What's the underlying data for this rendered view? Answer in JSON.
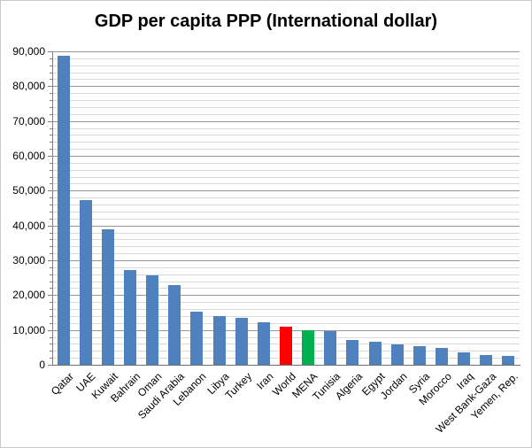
{
  "chart": {
    "title": "GDP per capita PPP (International dollar)"
  },
  "chart_data": {
    "type": "bar",
    "title": "GDP per capita PPP (International dollar)",
    "xlabel": "",
    "ylabel": "",
    "ylim": [
      0,
      90000
    ],
    "ytick_interval": 10000,
    "minor_gridline_interval": 2000,
    "grid": "horizontal major + minor, minor ticks on y-axis",
    "legend": "none",
    "categories": [
      "Qatar",
      "UAE",
      "Kuwait",
      "Bahrain",
      "Oman",
      "Saudi Arabia",
      "Lebanon",
      "Libya",
      "Turkey",
      "Iran",
      "World",
      "MENA",
      "Tunisia",
      "Algeria",
      "Egypt",
      "Jordan",
      "Syria",
      "Morocco",
      "Iraq",
      "West Bank-Gaza",
      "Yemen, Rep."
    ],
    "values": [
      88800,
      47400,
      39000,
      27100,
      25600,
      22900,
      15300,
      13900,
      13600,
      12200,
      10900,
      9800,
      9700,
      7100,
      6500,
      5900,
      5300,
      4900,
      3600,
      2900,
      2600
    ],
    "ytick_labels": [
      "0",
      "10,000",
      "20,000",
      "30,000",
      "40,000",
      "50,000",
      "60,000",
      "70,000",
      "80,000",
      "90,000"
    ],
    "default_bar_color": "#4F81BD",
    "highlight_colors": {
      "World": "#FF0000",
      "MENA": "#00B050"
    }
  },
  "style": {
    "major_gridline_color": "#969696",
    "minor_gridline_color": "#D9D9D9",
    "axis_color": "#808080",
    "frame_border_color": "#C9C9C9",
    "background_color": "#FFFFFF",
    "title_color": "#000000"
  }
}
